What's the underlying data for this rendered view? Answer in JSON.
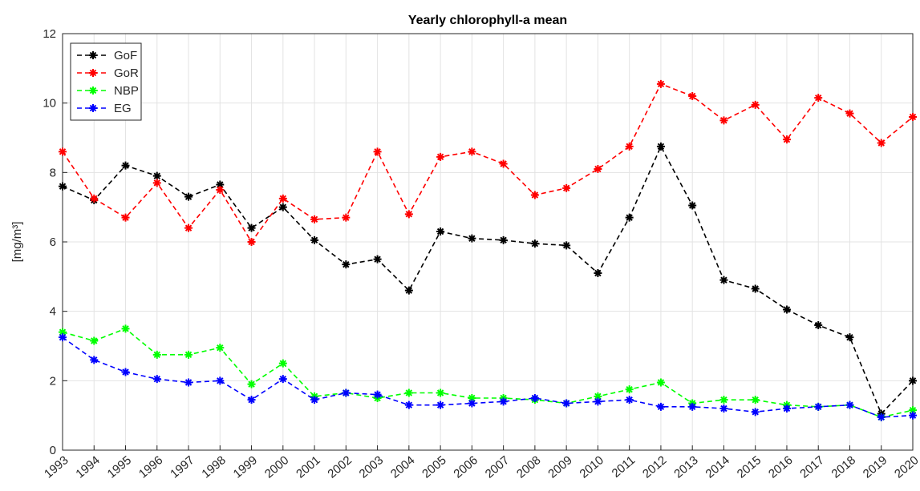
{
  "chart_data": {
    "type": "line",
    "title": "Yearly chlorophyll-a mean",
    "y_label": "[mg/m³]",
    "x": [
      1993,
      1994,
      1995,
      1996,
      1997,
      1998,
      1999,
      2000,
      2001,
      2002,
      2003,
      2004,
      2005,
      2006,
      2007,
      2008,
      2009,
      2010,
      2011,
      2012,
      2013,
      2014,
      2015,
      2016,
      2017,
      2018,
      2019,
      2020
    ],
    "xlim": [
      1993,
      2020
    ],
    "xticks": [
      1993,
      1994,
      1995,
      1996,
      1997,
      1998,
      1999,
      2000,
      2001,
      2002,
      2003,
      2004,
      2005,
      2006,
      2007,
      2008,
      2009,
      2010,
      2011,
      2012,
      2013,
      2014,
      2015,
      2016,
      2017,
      2018,
      2019,
      2020
    ],
    "ylim": [
      0,
      12
    ],
    "yticks": [
      0,
      2,
      4,
      6,
      8,
      10,
      12
    ],
    "grid": true,
    "legend": "upper left",
    "series": [
      {
        "name": "GoF",
        "color": "#000000",
        "values": [
          7.6,
          7.2,
          8.2,
          7.9,
          7.3,
          7.65,
          6.4,
          7.0,
          6.05,
          5.35,
          5.5,
          4.6,
          6.3,
          6.1,
          6.05,
          5.95,
          5.9,
          5.1,
          6.7,
          8.75,
          7.05,
          4.9,
          4.65,
          4.05,
          3.6,
          3.25,
          1.05,
          2.0
        ]
      },
      {
        "name": "GoR",
        "color": "#ff0000",
        "values": [
          8.6,
          7.25,
          6.7,
          7.7,
          6.4,
          7.5,
          6.0,
          7.25,
          6.65,
          6.7,
          8.6,
          6.8,
          8.45,
          8.6,
          8.25,
          7.35,
          7.55,
          8.1,
          8.75,
          10.55,
          10.2,
          9.5,
          9.95,
          8.95,
          10.15,
          9.7,
          8.85,
          9.6
        ]
      },
      {
        "name": "NBP",
        "color": "#00ff00",
        "values": [
          3.4,
          3.15,
          3.5,
          2.75,
          2.75,
          2.95,
          1.9,
          2.5,
          1.55,
          1.65,
          1.5,
          1.65,
          1.65,
          1.5,
          1.5,
          1.45,
          1.35,
          1.55,
          1.75,
          1.95,
          1.35,
          1.45,
          1.45,
          1.3,
          1.25,
          1.3,
          0.95,
          1.15
        ]
      },
      {
        "name": "EG",
        "color": "#0000ff",
        "values": [
          3.25,
          2.6,
          2.25,
          2.05,
          1.95,
          2.0,
          1.45,
          2.05,
          1.45,
          1.65,
          1.6,
          1.3,
          1.3,
          1.35,
          1.4,
          1.5,
          1.35,
          1.4,
          1.45,
          1.25,
          1.25,
          1.2,
          1.1,
          1.2,
          1.25,
          1.3,
          0.95,
          1.0
        ]
      }
    ]
  }
}
